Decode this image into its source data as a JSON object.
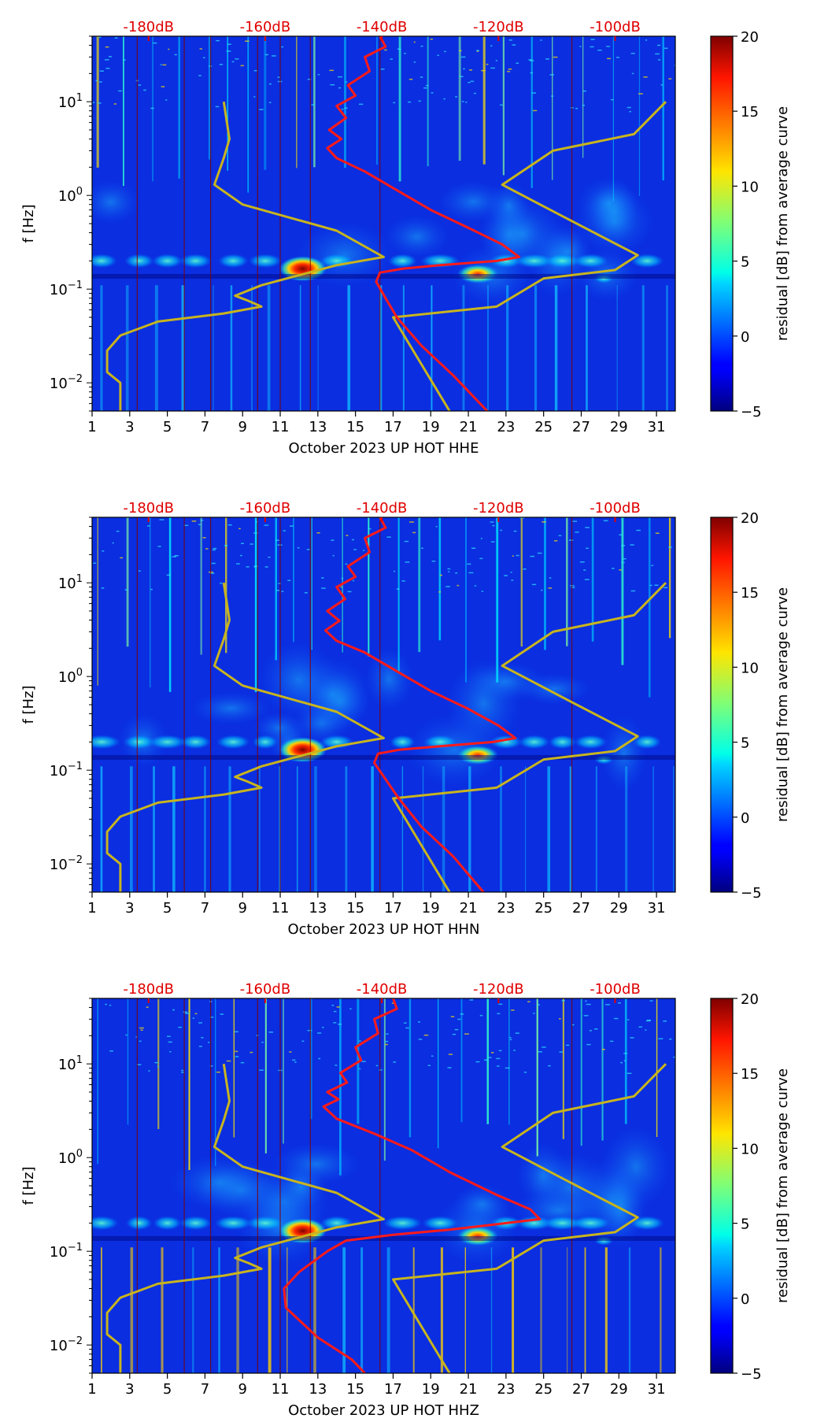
{
  "chart_data": [
    {
      "type": "heatmap",
      "component": "HHE",
      "xlabel": "October 2023 UP HOT  HHE",
      "ylabel": "f [Hz]",
      "x_ticks": [
        "1",
        "3",
        "5",
        "7",
        "9",
        "11",
        "13",
        "15",
        "17",
        "19",
        "21",
        "23",
        "25",
        "27",
        "29",
        "31"
      ],
      "x_range": [
        1,
        32
      ],
      "y_scale": "log",
      "y_range": [
        0.005,
        50
      ],
      "y_ticks": [
        {
          "base": "10",
          "exp": "1"
        },
        {
          "base": "10",
          "exp": "0"
        },
        {
          "base": "10",
          "exp": "−1"
        },
        {
          "base": "10",
          "exp": "−2"
        }
      ],
      "top_axis_labels": [
        "-180dB",
        "-160dB",
        "-140dB",
        "-120dB",
        "-100dB"
      ],
      "top_axis_values_day": [
        4,
        10.2,
        16.4,
        22.6,
        28.8
      ],
      "colorbar": {
        "label": "residual [dB] from average curve",
        "ticks": [
          "20",
          "15",
          "10",
          "5",
          "0",
          "−5"
        ],
        "range": [
          -5,
          20
        ]
      },
      "series": [
        {
          "name": "median PSD (red)",
          "color": "#ff1a1a",
          "points": [
            [
              16.3,
              50
            ],
            [
              15.5,
              30
            ],
            [
              14.6,
              15
            ],
            [
              14,
              9
            ],
            [
              13.6,
              5
            ],
            [
              13.5,
              3.2
            ],
            [
              14,
              2.5
            ],
            [
              15.5,
              1.8
            ],
            [
              17,
              1.2
            ],
            [
              19,
              0.7
            ],
            [
              21,
              0.45
            ],
            [
              22.8,
              0.3
            ],
            [
              23.7,
              0.22
            ],
            [
              22.5,
              0.2
            ],
            [
              19.5,
              0.18
            ],
            [
              17.5,
              0.165
            ],
            [
              16.3,
              0.15
            ],
            [
              16.1,
              0.12
            ],
            [
              16.6,
              0.08
            ],
            [
              17.2,
              0.05
            ],
            [
              18.5,
              0.025
            ],
            [
              20.2,
              0.012
            ],
            [
              22,
              0.005
            ]
          ]
        },
        {
          "name": "noise model (yellow)",
          "color": "#c8b41e",
          "points_low": [
            [
              8,
              10
            ],
            [
              8.3,
              4
            ],
            [
              8,
              2.5
            ],
            [
              7.5,
              1.3
            ],
            [
              9,
              0.8
            ],
            [
              14,
              0.42
            ],
            [
              16.5,
              0.22
            ],
            [
              14,
              0.18
            ],
            [
              10,
              0.11
            ],
            [
              8.6,
              0.085
            ],
            [
              9.3,
              0.075
            ],
            [
              10,
              0.065
            ],
            [
              8,
              0.055
            ],
            [
              4.5,
              0.045
            ],
            [
              2.5,
              0.032
            ],
            [
              1.8,
              0.022
            ],
            [
              1.8,
              0.013
            ],
            [
              2.5,
              0.01
            ],
            [
              2.5,
              0.005
            ]
          ],
          "points_high": [
            [
              31.5,
              10
            ],
            [
              29.8,
              4.5
            ],
            [
              25.5,
              3
            ],
            [
              22.8,
              1.3
            ],
            [
              26,
              0.6
            ],
            [
              30,
              0.23
            ],
            [
              28.8,
              0.16
            ],
            [
              25,
              0.13
            ],
            [
              22.5,
              0.065
            ],
            [
              17,
              0.05
            ],
            [
              20,
              0.005
            ]
          ]
        }
      ]
    },
    {
      "type": "heatmap",
      "component": "HHN",
      "xlabel": "October 2023 UP HOT  HHN",
      "ylabel": "f [Hz]",
      "x_ticks": [
        "1",
        "3",
        "5",
        "7",
        "9",
        "11",
        "13",
        "15",
        "17",
        "19",
        "21",
        "23",
        "25",
        "27",
        "29",
        "31"
      ],
      "x_range": [
        1,
        32
      ],
      "y_scale": "log",
      "y_range": [
        0.005,
        50
      ],
      "y_ticks": [
        {
          "base": "10",
          "exp": "1"
        },
        {
          "base": "10",
          "exp": "0"
        },
        {
          "base": "10",
          "exp": "−1"
        },
        {
          "base": "10",
          "exp": "−2"
        }
      ],
      "top_axis_labels": [
        "-180dB",
        "-160dB",
        "-140dB",
        "-120dB",
        "-100dB"
      ],
      "top_axis_values_day": [
        4,
        10.2,
        16.4,
        22.6,
        28.8
      ],
      "colorbar": {
        "label": "residual [dB] from average curve",
        "ticks": [
          "20",
          "15",
          "10",
          "5",
          "0",
          "−5"
        ],
        "range": [
          -5,
          20
        ]
      },
      "series": [
        {
          "name": "median PSD (red)",
          "color": "#ff1a1a",
          "points": [
            [
              16.3,
              50
            ],
            [
              15.5,
              30
            ],
            [
              14.6,
              15
            ],
            [
              14,
              9
            ],
            [
              13.5,
              5
            ],
            [
              13.4,
              3.1
            ],
            [
              14,
              2.4
            ],
            [
              15.5,
              1.8
            ],
            [
              17,
              1.2
            ],
            [
              19,
              0.7
            ],
            [
              21,
              0.45
            ],
            [
              22.6,
              0.3
            ],
            [
              23.5,
              0.22
            ],
            [
              22.3,
              0.2
            ],
            [
              19.5,
              0.18
            ],
            [
              17.3,
              0.165
            ],
            [
              16.2,
              0.15
            ],
            [
              16,
              0.12
            ],
            [
              16.6,
              0.08
            ],
            [
              17.3,
              0.05
            ],
            [
              18.5,
              0.025
            ],
            [
              20.2,
              0.012
            ],
            [
              21.8,
              0.005
            ]
          ]
        },
        {
          "name": "noise model (yellow)",
          "color": "#c8b41e",
          "points_low": [
            [
              8,
              10
            ],
            [
              8.3,
              4
            ],
            [
              8,
              2.5
            ],
            [
              7.5,
              1.3
            ],
            [
              9,
              0.8
            ],
            [
              14,
              0.42
            ],
            [
              16.5,
              0.22
            ],
            [
              14,
              0.18
            ],
            [
              10,
              0.11
            ],
            [
              8.6,
              0.085
            ],
            [
              9.3,
              0.075
            ],
            [
              10,
              0.065
            ],
            [
              8,
              0.055
            ],
            [
              4.5,
              0.045
            ],
            [
              2.5,
              0.032
            ],
            [
              1.8,
              0.022
            ],
            [
              1.8,
              0.013
            ],
            [
              2.5,
              0.01
            ],
            [
              2.5,
              0.005
            ]
          ],
          "points_high": [
            [
              31.5,
              10
            ],
            [
              29.8,
              4.5
            ],
            [
              25.5,
              3
            ],
            [
              22.8,
              1.3
            ],
            [
              26,
              0.6
            ],
            [
              30,
              0.23
            ],
            [
              28.8,
              0.16
            ],
            [
              25,
              0.13
            ],
            [
              22.5,
              0.065
            ],
            [
              17,
              0.05
            ],
            [
              20,
              0.005
            ]
          ]
        }
      ]
    },
    {
      "type": "heatmap",
      "component": "HHZ",
      "xlabel": "October 2023 UP HOT  HHZ",
      "ylabel": "f [Hz]",
      "x_ticks": [
        "1",
        "3",
        "5",
        "7",
        "9",
        "11",
        "13",
        "15",
        "17",
        "19",
        "21",
        "23",
        "25",
        "27",
        "29",
        "31"
      ],
      "x_range": [
        1,
        32
      ],
      "y_scale": "log",
      "y_range": [
        0.005,
        50
      ],
      "y_ticks": [
        {
          "base": "10",
          "exp": "1"
        },
        {
          "base": "10",
          "exp": "0"
        },
        {
          "base": "10",
          "exp": "−1"
        },
        {
          "base": "10",
          "exp": "−2"
        }
      ],
      "top_axis_labels": [
        "-180dB",
        "-160dB",
        "-140dB",
        "-120dB",
        "-100dB"
      ],
      "top_axis_values_day": [
        4,
        10.2,
        16.4,
        22.6,
        28.8
      ],
      "colorbar": {
        "label": "residual [dB] from average curve",
        "ticks": [
          "20",
          "15",
          "10",
          "5",
          "0",
          "−5"
        ],
        "range": [
          -5,
          20
        ]
      },
      "series": [
        {
          "name": "median PSD (red)",
          "color": "#ff1a1a",
          "points": [
            [
              17,
              50
            ],
            [
              16,
              30
            ],
            [
              15,
              15
            ],
            [
              14.2,
              8
            ],
            [
              13.5,
              5
            ],
            [
              13.3,
              3.5
            ],
            [
              14,
              2.6
            ],
            [
              16,
              1.8
            ],
            [
              18,
              1.2
            ],
            [
              20,
              0.7
            ],
            [
              22.5,
              0.4
            ],
            [
              24.3,
              0.28
            ],
            [
              24.8,
              0.22
            ],
            [
              23,
              0.2
            ],
            [
              20,
              0.17
            ],
            [
              17,
              0.15
            ],
            [
              14.5,
              0.13
            ],
            [
              13.5,
              0.1
            ],
            [
              12,
              0.06
            ],
            [
              11.2,
              0.04
            ],
            [
              11.3,
              0.025
            ],
            [
              13,
              0.012
            ],
            [
              14.8,
              0.007
            ],
            [
              15.5,
              0.005
            ]
          ]
        },
        {
          "name": "noise model (yellow)",
          "color": "#c8b41e",
          "points_low": [
            [
              8,
              10
            ],
            [
              8.3,
              4
            ],
            [
              8,
              2.5
            ],
            [
              7.5,
              1.3
            ],
            [
              9,
              0.8
            ],
            [
              14,
              0.42
            ],
            [
              16.5,
              0.22
            ],
            [
              14,
              0.18
            ],
            [
              10,
              0.11
            ],
            [
              8.6,
              0.085
            ],
            [
              9.3,
              0.075
            ],
            [
              10,
              0.065
            ],
            [
              8,
              0.055
            ],
            [
              4.5,
              0.045
            ],
            [
              2.5,
              0.032
            ],
            [
              1.8,
              0.022
            ],
            [
              1.8,
              0.013
            ],
            [
              2.5,
              0.01
            ],
            [
              2.5,
              0.005
            ]
          ],
          "points_high": [
            [
              31.5,
              10
            ],
            [
              29.8,
              4.5
            ],
            [
              25.5,
              3
            ],
            [
              22.8,
              1.3
            ],
            [
              26,
              0.6
            ],
            [
              30,
              0.23
            ],
            [
              28.8,
              0.16
            ],
            [
              25,
              0.13
            ],
            [
              22.5,
              0.065
            ],
            [
              17,
              0.05
            ],
            [
              20,
              0.005
            ]
          ]
        }
      ]
    }
  ]
}
